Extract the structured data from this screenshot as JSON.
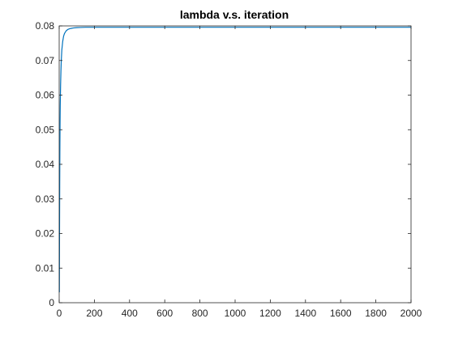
{
  "chart_data": {
    "type": "line",
    "title": "lambda v.s. iteration",
    "xlabel": "",
    "ylabel": "",
    "xlim": [
      0,
      2000
    ],
    "ylim": [
      0,
      0.08
    ],
    "xticks": [
      0,
      200,
      400,
      600,
      800,
      1000,
      1200,
      1400,
      1600,
      1800,
      2000
    ],
    "xtick_labels": [
      "0",
      "200",
      "400",
      "600",
      "800",
      "1000",
      "1200",
      "1400",
      "1600",
      "1800",
      "2000"
    ],
    "yticks": [
      0,
      0.01,
      0.02,
      0.03,
      0.04,
      0.05,
      0.06,
      0.07,
      0.08
    ],
    "ytick_labels": [
      "0",
      "0.01",
      "0.02",
      "0.03",
      "0.04",
      "0.05",
      "0.06",
      "0.07",
      "0.08"
    ],
    "grid": false,
    "series": [
      {
        "color": "#0072bd",
        "x": [
          1,
          2,
          3,
          4,
          5,
          6,
          8,
          10,
          12,
          15,
          20,
          25,
          30,
          40,
          50,
          60,
          70,
          80,
          100,
          120,
          150,
          200,
          300,
          500,
          1000,
          1500,
          2000
        ],
        "y": [
          0.003,
          0.02,
          0.035,
          0.045,
          0.052,
          0.057,
          0.063,
          0.067,
          0.07,
          0.073,
          0.0755,
          0.077,
          0.0778,
          0.0786,
          0.079,
          0.0792,
          0.0793,
          0.0794,
          0.0795,
          0.07955,
          0.0796,
          0.0796,
          0.0796,
          0.0796,
          0.0796,
          0.0796,
          0.0796
        ]
      }
    ]
  }
}
